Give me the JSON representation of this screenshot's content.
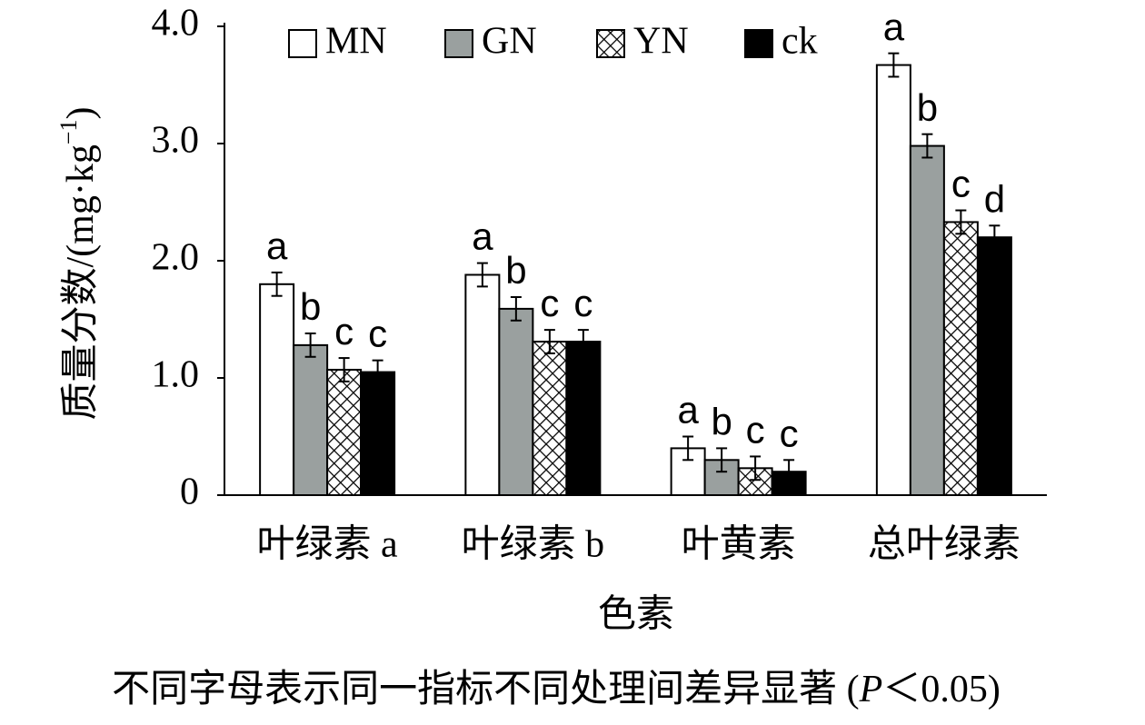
{
  "chart_data": {
    "type": "bar",
    "y_label": "质量分数/(mg·kg",
    "y_label_sup": "−1",
    "y_label_end": ")",
    "x_label": "色素",
    "note": "不同字母表示同一指标不同处理间差异显著 (",
    "note_italic": "P",
    "note_end": "＜0.05)",
    "categories": [
      "叶绿素 a",
      "叶绿素 b",
      "叶黄素",
      "总叶绿素"
    ],
    "series": [
      {
        "name": "MN",
        "color": "#ffffff",
        "values": [
          1.8,
          1.88,
          0.4,
          3.67
        ],
        "errors": [
          0.1,
          0.1,
          0.1,
          0.1
        ],
        "letters": [
          "a",
          "a",
          "a",
          "a"
        ]
      },
      {
        "name": "GN",
        "color": "#9aa09f",
        "values": [
          1.28,
          1.59,
          0.3,
          2.98
        ],
        "errors": [
          0.1,
          0.1,
          0.1,
          0.1
        ],
        "letters": [
          "b",
          "b",
          "b",
          "b"
        ]
      },
      {
        "name": "YN",
        "color": "#ffffff",
        "fill_pattern": "crosshatch",
        "values": [
          1.07,
          1.31,
          0.23,
          2.33
        ],
        "errors": [
          0.1,
          0.1,
          0.1,
          0.1
        ],
        "letters": [
          "c",
          "c",
          "c",
          "c"
        ]
      },
      {
        "name": "ck",
        "color": "#000000",
        "values": [
          1.05,
          1.31,
          0.2,
          2.2
        ],
        "errors": [
          0.1,
          0.1,
          0.1,
          0.1
        ],
        "letters": [
          "c",
          "c",
          "c",
          "d"
        ]
      }
    ],
    "ylim": [
      0,
      4
    ],
    "yticks": [
      0,
      {
        "value": 1,
        "label": "1.0"
      },
      {
        "value": 2,
        "label": "2.0"
      },
      {
        "value": 3,
        "label": "3.0"
      },
      {
        "value": 4,
        "label": "4.0"
      }
    ],
    "grid": false,
    "legend": "top"
  }
}
